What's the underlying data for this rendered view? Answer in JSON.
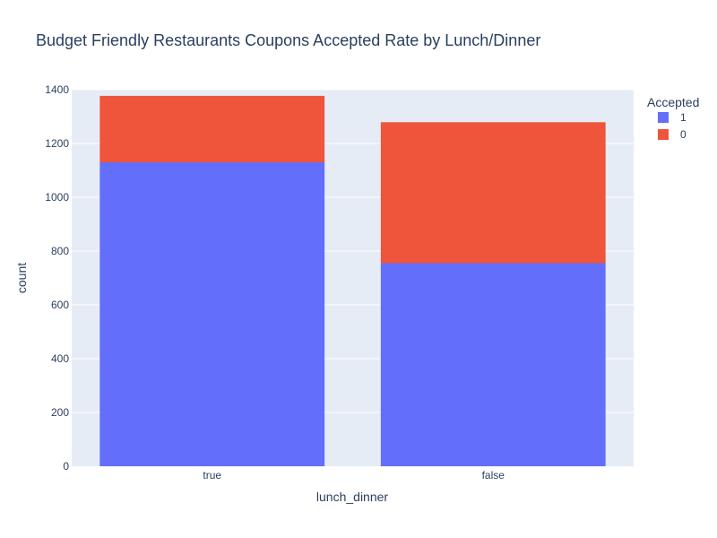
{
  "chart_data": {
    "type": "bar",
    "barmode": "stack",
    "title": "Budget Friendly Restaurants Coupons Accepted Rate by Lunch/Dinner",
    "xlabel": "lunch_dinner",
    "ylabel": "count",
    "categories": [
      "true",
      "false"
    ],
    "series": [
      {
        "name": "1",
        "values": [
          1130,
          755
        ],
        "color": "#636efa"
      },
      {
        "name": "0",
        "values": [
          247,
          524
        ],
        "color": "#ef553b"
      }
    ],
    "ylim": [
      0,
      1400
    ],
    "yticks": [
      0,
      200,
      400,
      600,
      800,
      1000,
      1200,
      1400
    ],
    "legend": {
      "title": "Accepted",
      "position": "top-right"
    },
    "grid": true,
    "colors": {
      "plot_bg": "#e5ecf6",
      "grid": "#ffffff",
      "text": "#2a3f5f"
    }
  }
}
